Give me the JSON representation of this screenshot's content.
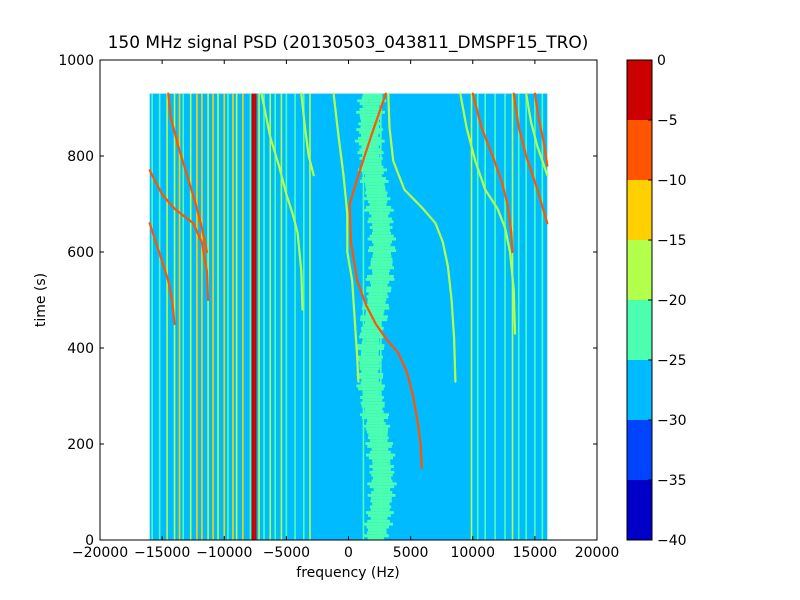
{
  "chart_data": {
    "type": "heatmap",
    "title": "150 MHz signal PSD (20130503_043811_DMSPF15_TRO)",
    "xlabel": "frequency (Hz)",
    "ylabel": "time (s)",
    "xlim": [
      -20000,
      20000
    ],
    "ylim": [
      0,
      1000
    ],
    "x_ticks": [
      -20000,
      -15000,
      -10000,
      -5000,
      0,
      5000,
      10000,
      15000,
      20000
    ],
    "x_tick_labels": [
      "−20000",
      "−15000",
      "−10000",
      "−5000",
      "0",
      "5000",
      "10000",
      "15000",
      "20000"
    ],
    "y_ticks": [
      0,
      200,
      400,
      600,
      800,
      1000
    ],
    "y_tick_labels": [
      "0",
      "200",
      "400",
      "600",
      "800",
      "1000"
    ],
    "data_extent": {
      "freq_min": -16000,
      "freq_max": 16000,
      "time_min": 0,
      "time_max": 930
    },
    "background_level": -28,
    "vertical_lines": [
      {
        "freq": -15800,
        "level": -22
      },
      {
        "freq": -15200,
        "level": -22
      },
      {
        "freq": -14600,
        "level": -17
      },
      {
        "freq": -14000,
        "level": -20
      },
      {
        "freq": -13600,
        "level": -12
      },
      {
        "freq": -13300,
        "level": -22
      },
      {
        "freq": -12700,
        "level": -17
      },
      {
        "freq": -12200,
        "level": -12
      },
      {
        "freq": -11800,
        "level": -12
      },
      {
        "freq": -11300,
        "level": -17
      },
      {
        "freq": -10900,
        "level": -12
      },
      {
        "freq": -10500,
        "level": -17
      },
      {
        "freq": -10000,
        "level": -12
      },
      {
        "freq": -9700,
        "level": -22
      },
      {
        "freq": -9300,
        "level": -12
      },
      {
        "freq": -9000,
        "level": -17
      },
      {
        "freq": -8500,
        "level": -12
      },
      {
        "freq": -7900,
        "level": -22
      },
      {
        "freq": -7700,
        "level": -2
      },
      {
        "freq": -7500,
        "level": -2
      },
      {
        "freq": -7200,
        "level": -17
      },
      {
        "freq": -6800,
        "level": -22
      },
      {
        "freq": -6300,
        "level": -17
      },
      {
        "freq": -5900,
        "level": -22
      },
      {
        "freq": -5400,
        "level": -17
      },
      {
        "freq": -5000,
        "level": -22
      },
      {
        "freq": -4300,
        "level": -22
      },
      {
        "freq": -3600,
        "level": -22
      },
      {
        "freq": -3100,
        "level": -17
      },
      {
        "freq": 1200,
        "level": -22
      },
      {
        "freq": 2600,
        "level": -22
      },
      {
        "freq": 9900,
        "level": -17
      },
      {
        "freq": 10400,
        "level": -22
      },
      {
        "freq": 11000,
        "level": -22
      },
      {
        "freq": 11800,
        "level": -22
      },
      {
        "freq": 12600,
        "level": -22
      },
      {
        "freq": 13200,
        "level": -17
      },
      {
        "freq": 13700,
        "level": -22
      },
      {
        "freq": 14300,
        "level": -22
      },
      {
        "freq": 15000,
        "level": -22
      },
      {
        "freq": 15600,
        "level": -22
      }
    ],
    "noise_band": {
      "freq_center": 2200,
      "freq_halfwidth": 1200,
      "level": -22
    },
    "drift_traces": [
      {
        "level": -6,
        "points": [
          [
            -14500,
            930
          ],
          [
            -14300,
            880
          ],
          [
            -13700,
            820
          ],
          [
            -13000,
            760
          ],
          [
            -12300,
            700
          ],
          [
            -11800,
            650
          ],
          [
            -11400,
            600
          ]
        ]
      },
      {
        "level": -10,
        "points": [
          [
            -16000,
            770
          ],
          [
            -15000,
            720
          ],
          [
            -14000,
            690
          ],
          [
            -12500,
            660
          ],
          [
            -11800,
            620
          ],
          [
            -11400,
            560
          ],
          [
            -11300,
            500
          ]
        ]
      },
      {
        "level": -10,
        "points": [
          [
            -16000,
            660
          ],
          [
            -15500,
            620
          ],
          [
            -15000,
            580
          ],
          [
            -14500,
            540
          ],
          [
            -14200,
            500
          ],
          [
            -14000,
            450
          ]
        ]
      },
      {
        "level": -17,
        "points": [
          [
            -7000,
            930
          ],
          [
            -6300,
            840
          ],
          [
            -5600,
            780
          ],
          [
            -5000,
            720
          ],
          [
            -4500,
            680
          ],
          [
            -4100,
            640
          ],
          [
            -3800,
            560
          ],
          [
            -3700,
            480
          ]
        ]
      },
      {
        "level": -17,
        "points": [
          [
            -1200,
            930
          ],
          [
            -800,
            840
          ],
          [
            -400,
            760
          ],
          [
            -100,
            680
          ],
          [
            -100,
            600
          ],
          [
            300,
            540
          ],
          [
            500,
            460
          ],
          [
            700,
            380
          ],
          [
            800,
            330
          ]
        ]
      },
      {
        "level": -17,
        "points": [
          [
            -3800,
            930
          ],
          [
            -3500,
            860
          ],
          [
            -3200,
            800
          ],
          [
            -2800,
            760
          ]
        ]
      },
      {
        "level": -6,
        "points": [
          [
            3000,
            930
          ],
          [
            1800,
            840
          ],
          [
            800,
            760
          ],
          [
            100,
            700
          ],
          [
            200,
            620
          ],
          [
            700,
            540
          ],
          [
            1400,
            490
          ],
          [
            2200,
            450
          ],
          [
            3000,
            420
          ],
          [
            4000,
            390
          ],
          [
            4700,
            350
          ],
          [
            5200,
            300
          ],
          [
            5600,
            240
          ],
          [
            5800,
            200
          ],
          [
            5900,
            150
          ]
        ]
      },
      {
        "level": -17,
        "points": [
          [
            3200,
            930
          ],
          [
            3300,
            860
          ],
          [
            3600,
            790
          ],
          [
            4500,
            730
          ],
          [
            6000,
            690
          ],
          [
            7000,
            660
          ],
          [
            7600,
            620
          ],
          [
            8000,
            570
          ],
          [
            8300,
            500
          ],
          [
            8500,
            420
          ],
          [
            8600,
            330
          ]
        ]
      },
      {
        "level": -17,
        "points": [
          [
            9000,
            930
          ],
          [
            9500,
            860
          ],
          [
            10200,
            790
          ],
          [
            11000,
            730
          ],
          [
            12000,
            690
          ],
          [
            12600,
            650
          ],
          [
            13000,
            600
          ],
          [
            13300,
            520
          ],
          [
            13400,
            430
          ]
        ]
      },
      {
        "level": -10,
        "points": [
          [
            10000,
            930
          ],
          [
            10700,
            860
          ],
          [
            11600,
            800
          ],
          [
            12300,
            750
          ],
          [
            12800,
            700
          ],
          [
            13100,
            640
          ],
          [
            13200,
            600
          ]
        ]
      },
      {
        "level": -6,
        "points": [
          [
            13300,
            930
          ],
          [
            13700,
            860
          ],
          [
            14300,
            800
          ],
          [
            15200,
            730
          ],
          [
            16000,
            660
          ]
        ]
      },
      {
        "level": -6,
        "points": [
          [
            15000,
            930
          ],
          [
            15300,
            880
          ],
          [
            15700,
            830
          ],
          [
            16000,
            780
          ]
        ]
      },
      {
        "level": -17,
        "points": [
          [
            14300,
            930
          ],
          [
            14700,
            870
          ],
          [
            15200,
            820
          ],
          [
            16000,
            760
          ]
        ]
      }
    ],
    "colorbar": {
      "min": -40,
      "max": 0,
      "boundaries": [
        -40,
        -35,
        -30,
        -25,
        -20,
        -15,
        -10,
        -5,
        0
      ],
      "tick_labels": [
        "−40",
        "−35",
        "−30",
        "−25",
        "−20",
        "−15",
        "−10",
        "−5",
        "0"
      ],
      "colors": [
        "#0000c8",
        "#0044ff",
        "#00bbff",
        "#4cffb0",
        "#b2ff4c",
        "#ffd000",
        "#ff5500",
        "#cc0000"
      ]
    }
  }
}
